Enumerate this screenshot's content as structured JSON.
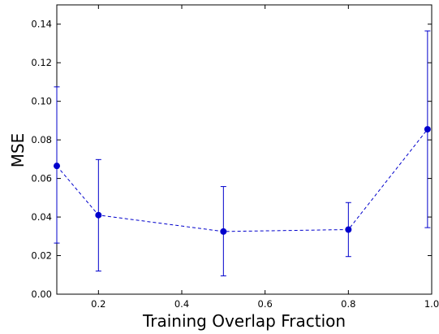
{
  "chart_data": {
    "type": "line",
    "title": "",
    "xlabel": "Training Overlap Fraction",
    "ylabel": "MSE",
    "xlim": [
      0.1,
      1.0
    ],
    "ylim": [
      0.0,
      0.15
    ],
    "xticks": [
      0.2,
      0.4,
      0.6,
      0.8,
      1.0
    ],
    "xtick_labels": [
      "0.2",
      "0.4",
      "0.6",
      "0.8",
      "1.0"
    ],
    "yticks": [
      0.0,
      0.02,
      0.04,
      0.06,
      0.08,
      0.1,
      0.12,
      0.14
    ],
    "ytick_labels": [
      "0.00",
      "0.02",
      "0.04",
      "0.06",
      "0.08",
      "0.10",
      "0.12",
      "0.14"
    ],
    "grid": false,
    "legend": "none",
    "series": [
      {
        "x": [
          0.1,
          0.2,
          0.5,
          0.8,
          0.99
        ],
        "y": [
          0.0665,
          0.041,
          0.0325,
          0.0335,
          0.0855
        ],
        "yerr_low": [
          0.0265,
          0.012,
          0.0095,
          0.0195,
          0.0345
        ],
        "yerr_high": [
          0.1075,
          0.0698,
          0.0558,
          0.0475,
          0.1365
        ],
        "color": "#0000cc",
        "line_style": "dashed",
        "marker": "circle"
      }
    ]
  }
}
